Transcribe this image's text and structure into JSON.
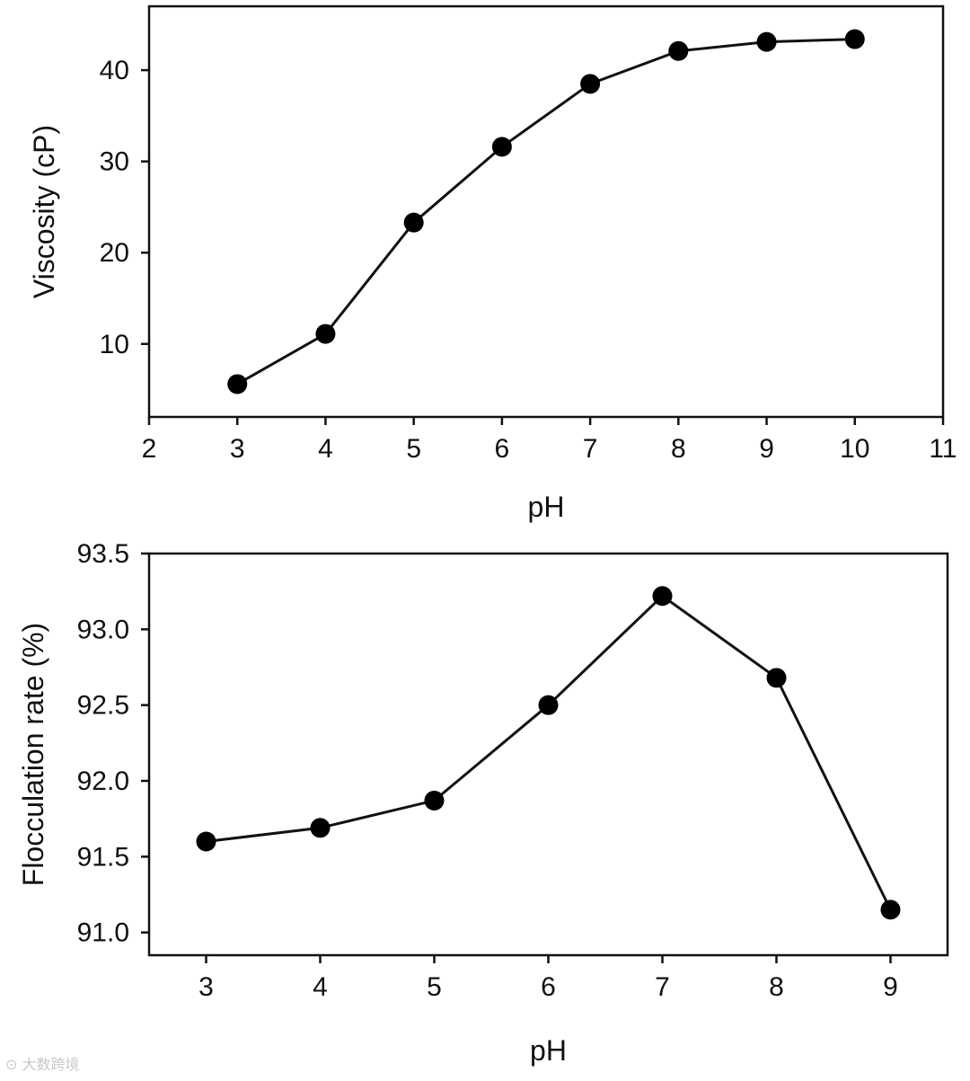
{
  "chart_data": [
    {
      "type": "line",
      "title": "",
      "xlabel": "pH",
      "ylabel": "Viscosity  (cP)",
      "x": [
        3,
        4,
        5,
        6,
        7,
        8,
        9,
        10
      ],
      "series": [
        {
          "name": "Viscosity",
          "values": [
            5.6,
            11.1,
            23.3,
            31.6,
            38.5,
            42.1,
            43.1,
            43.4
          ]
        }
      ],
      "xlim": [
        2,
        11
      ],
      "ylim": [
        2.0,
        47.0
      ],
      "xticks": [
        2,
        3,
        4,
        5,
        6,
        7,
        8,
        9,
        10,
        11
      ],
      "yticks": [
        10,
        20,
        30,
        40
      ],
      "ytick_labels": [
        "10",
        "20",
        "30",
        "40"
      ],
      "grid": false,
      "legend": false
    },
    {
      "type": "line",
      "title": "",
      "xlabel": "pH",
      "ylabel": "Flocculation rate (%)",
      "x": [
        3,
        4,
        5,
        6,
        7,
        8,
        9
      ],
      "series": [
        {
          "name": "Flocculation rate",
          "values": [
            91.6,
            91.69,
            91.87,
            92.5,
            93.22,
            92.68,
            91.15
          ]
        }
      ],
      "xlim": [
        2.5,
        9.5
      ],
      "ylim": [
        90.85,
        93.5
      ],
      "xticks": [
        3,
        4,
        5,
        6,
        7,
        8,
        9
      ],
      "yticks": [
        91.0,
        91.5,
        92.0,
        92.5,
        93.0,
        93.5
      ],
      "ytick_labels": [
        "91.0",
        "91.5",
        "92.0",
        "92.5",
        "93.0",
        "93.5"
      ],
      "grid": false,
      "legend": false
    }
  ],
  "watermark": "大数跨境",
  "colors": {
    "line": "#111111",
    "marker": "#000000",
    "axis": "#111111"
  }
}
